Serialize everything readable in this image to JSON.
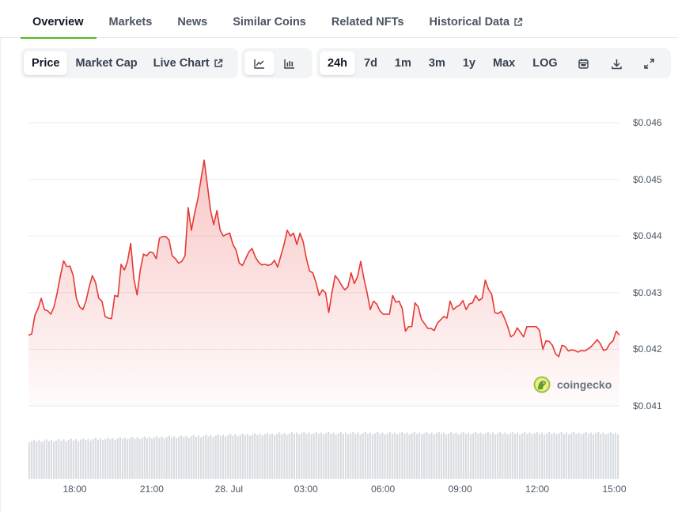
{
  "tabs": [
    {
      "label": "Overview",
      "active": true
    },
    {
      "label": "Markets"
    },
    {
      "label": "News"
    },
    {
      "label": "Similar Coins"
    },
    {
      "label": "Related NFTs"
    },
    {
      "label": "Historical Data",
      "external": true
    }
  ],
  "metric_toggle": [
    {
      "label": "Price",
      "active": true
    },
    {
      "label": "Market Cap"
    },
    {
      "label": "Live Chart",
      "external": true
    }
  ],
  "chart_type_toggle": [
    {
      "icon": "line-chart-icon",
      "active": true
    },
    {
      "icon": "candlestick-chart-icon"
    }
  ],
  "ranges": [
    {
      "label": "24h",
      "active": true
    },
    {
      "label": "7d"
    },
    {
      "label": "1m"
    },
    {
      "label": "3m"
    },
    {
      "label": "1y"
    },
    {
      "label": "Max"
    },
    {
      "label": "LOG"
    }
  ],
  "range_icons": [
    "calendar-icon",
    "download-icon",
    "expand-icon"
  ],
  "watermark": "coingecko",
  "chart_data": {
    "type": "area",
    "ylim": [
      0.0405,
      0.0462
    ],
    "y_ticks": [
      "$0.046",
      "$0.045",
      "$0.044",
      "$0.043",
      "$0.042",
      "$0.041"
    ],
    "y_tick_values": [
      0.046,
      0.045,
      0.044,
      0.043,
      0.042,
      0.041
    ],
    "x_ticks": [
      {
        "label": "18:00",
        "hour": 1.8
      },
      {
        "label": "21:00",
        "hour": 4.8
      },
      {
        "label": "28. Jul",
        "hour": 7.8
      },
      {
        "label": "03:00",
        "hour": 10.8
      },
      {
        "label": "06:00",
        "hour": 13.8
      },
      {
        "label": "09:00",
        "hour": 16.8
      },
      {
        "label": "12:00",
        "hour": 19.8
      },
      {
        "label": "15:00",
        "hour": 22.8
      }
    ],
    "x_range": [
      0,
      23.0
    ],
    "line_color": "#e53935",
    "fill_color": "#e53935",
    "series": [
      {
        "values": [
          0.04225,
          0.04227,
          0.0426,
          0.04272,
          0.0429,
          0.0427,
          0.04268,
          0.04262,
          0.04275,
          0.043,
          0.0433,
          0.04356,
          0.04346,
          0.04347,
          0.0433,
          0.0429,
          0.04275,
          0.0427,
          0.04285,
          0.0431,
          0.0433,
          0.04318,
          0.0429,
          0.04285,
          0.04258,
          0.04255,
          0.04254,
          0.04295,
          0.04293,
          0.0435,
          0.0434,
          0.04355,
          0.04387,
          0.04324,
          0.04296,
          0.0434,
          0.04368,
          0.04365,
          0.04372,
          0.0437,
          0.0436,
          0.04396,
          0.04399,
          0.04399,
          0.04393,
          0.04365,
          0.0436,
          0.04352,
          0.04355,
          0.04365,
          0.0445,
          0.0441,
          0.0444,
          0.04465,
          0.045,
          0.04534,
          0.0449,
          0.04445,
          0.0442,
          0.04445,
          0.0441,
          0.044,
          0.04403,
          0.04405,
          0.04385,
          0.04375,
          0.04352,
          0.04348,
          0.0436,
          0.04372,
          0.04378,
          0.04363,
          0.04354,
          0.04349,
          0.0435,
          0.04348,
          0.0435,
          0.04357,
          0.04345,
          0.04365,
          0.04385,
          0.0441,
          0.044,
          0.04405,
          0.04385,
          0.04405,
          0.0439,
          0.0436,
          0.04338,
          0.04335,
          0.04318,
          0.04295,
          0.04305,
          0.043,
          0.04265,
          0.043,
          0.0433,
          0.04323,
          0.04313,
          0.04305,
          0.0431,
          0.04335,
          0.04316,
          0.04328,
          0.04355,
          0.04325,
          0.043,
          0.0427,
          0.04285,
          0.0428,
          0.04268,
          0.04262,
          0.04262,
          0.04262,
          0.04295,
          0.04283,
          0.04285,
          0.04272,
          0.04232,
          0.0424,
          0.0424,
          0.04282,
          0.04275,
          0.04253,
          0.04245,
          0.04237,
          0.04237,
          0.04233,
          0.04246,
          0.04252,
          0.04258,
          0.04255,
          0.04285,
          0.0427,
          0.04275,
          0.04278,
          0.04286,
          0.0427,
          0.0428,
          0.04282,
          0.04295,
          0.04286,
          0.0429,
          0.04322,
          0.04306,
          0.04297,
          0.04265,
          0.04263,
          0.04267,
          0.04255,
          0.0424,
          0.04222,
          0.04226,
          0.04238,
          0.0423,
          0.04222,
          0.0424,
          0.0424,
          0.0424,
          0.0424,
          0.04233,
          0.042,
          0.04215,
          0.04214,
          0.04207,
          0.04192,
          0.04187,
          0.04207,
          0.04205,
          0.04197,
          0.04199,
          0.04198,
          0.04195,
          0.04198,
          0.04197,
          0.042,
          0.04204,
          0.0421,
          0.04217,
          0.0421,
          0.04198,
          0.042,
          0.0421,
          0.04215,
          0.04232,
          0.04225
        ]
      }
    ]
  }
}
